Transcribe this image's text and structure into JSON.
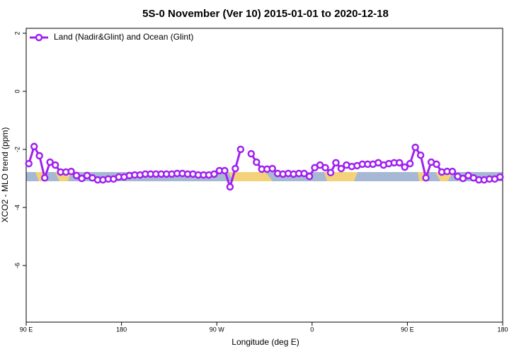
{
  "chart_data": {
    "type": "line",
    "title": "5S-0 November (Ver 10)   2015-01-01 to 2020-12-18",
    "xlabel": "Longitude (deg E)",
    "ylabel": "XCO2 - MLO trend (ppm)",
    "x": [
      92.5,
      97.5,
      102.5,
      107.5,
      112.5,
      117.5,
      122.5,
      127.5,
      132.5,
      137.5,
      142.5,
      147.5,
      152.5,
      157.5,
      162.5,
      167.5,
      172.5,
      177.5,
      182.5,
      187.5,
      192.5,
      197.5,
      202.5,
      207.5,
      212.5,
      217.5,
      222.5,
      227.5,
      232.5,
      237.5,
      242.5,
      247.5,
      252.5,
      257.5,
      262.5,
      267.5,
      272.5,
      277.5,
      282.5,
      287.5,
      292.5,
      297.5,
      302.5,
      307.5,
      312.5,
      317.5,
      322.5,
      327.5,
      332.5,
      337.5,
      342.5,
      347.5,
      352.5,
      357.5,
      362.5,
      367.5,
      372.5,
      377.5,
      382.5,
      387.5,
      392.5,
      397.5,
      402.5,
      407.5,
      412.5,
      417.5,
      422.5,
      427.5,
      432.5,
      437.5,
      442.5,
      447.5,
      452.5,
      457.5,
      462.5,
      467.5,
      472.5,
      477.5,
      482.5,
      487.5,
      492.5,
      497.5,
      502.5,
      507.5,
      512.5,
      517.5,
      522.5,
      527.5,
      532.5,
      537.5
    ],
    "series": [
      {
        "name": "Land (Nadir&Glint) and Ocean (Glint)",
        "color": "#a020f0",
        "values": [
          -2.49,
          -1.9,
          -2.22,
          -2.98,
          -2.44,
          -2.54,
          -2.78,
          -2.78,
          -2.76,
          -2.9,
          -3.0,
          -2.9,
          -2.98,
          -3.05,
          -3.05,
          -3.02,
          -3.02,
          -2.95,
          -2.95,
          -2.9,
          -2.88,
          -2.88,
          -2.85,
          -2.85,
          -2.85,
          -2.85,
          -2.85,
          -2.85,
          -2.83,
          -2.83,
          -2.85,
          -2.85,
          -2.88,
          -2.88,
          -2.88,
          -2.85,
          -2.73,
          -2.73,
          -3.29,
          -2.66,
          -2.0,
          null,
          -2.15,
          -2.44,
          -2.68,
          -2.68,
          -2.66,
          -2.83,
          -2.85,
          -2.83,
          -2.85,
          -2.83,
          -2.83,
          -2.93,
          -2.63,
          -2.54,
          -2.63,
          -2.8,
          -2.46,
          -2.66,
          -2.54,
          -2.59,
          -2.56,
          -2.51,
          -2.51,
          -2.51,
          -2.46,
          -2.54,
          -2.49,
          -2.46,
          -2.46,
          -2.61,
          -2.49,
          -1.93,
          -2.2,
          -2.98,
          -2.44,
          -2.51,
          -2.78,
          -2.76,
          -2.76,
          -2.93,
          -3.0,
          -2.9,
          -2.98,
          -3.05,
          -3.05,
          -3.02,
          -3.02,
          -2.95
        ]
      }
    ],
    "xlim": [
      90,
      540
    ],
    "xticks": [
      {
        "value": 90,
        "label": "90 E"
      },
      180,
      {
        "value": 270,
        "label": "90 W"
      },
      {
        "value": 360,
        "label": "0"
      },
      {
        "value": 450,
        "label": "90 E"
      },
      {
        "value": 540,
        "label": "180"
      }
    ],
    "ylim": [
      -7.95,
      2.17
    ],
    "yticks": [
      2,
      0,
      -2,
      -4,
      -6
    ],
    "legend": "upper left"
  }
}
